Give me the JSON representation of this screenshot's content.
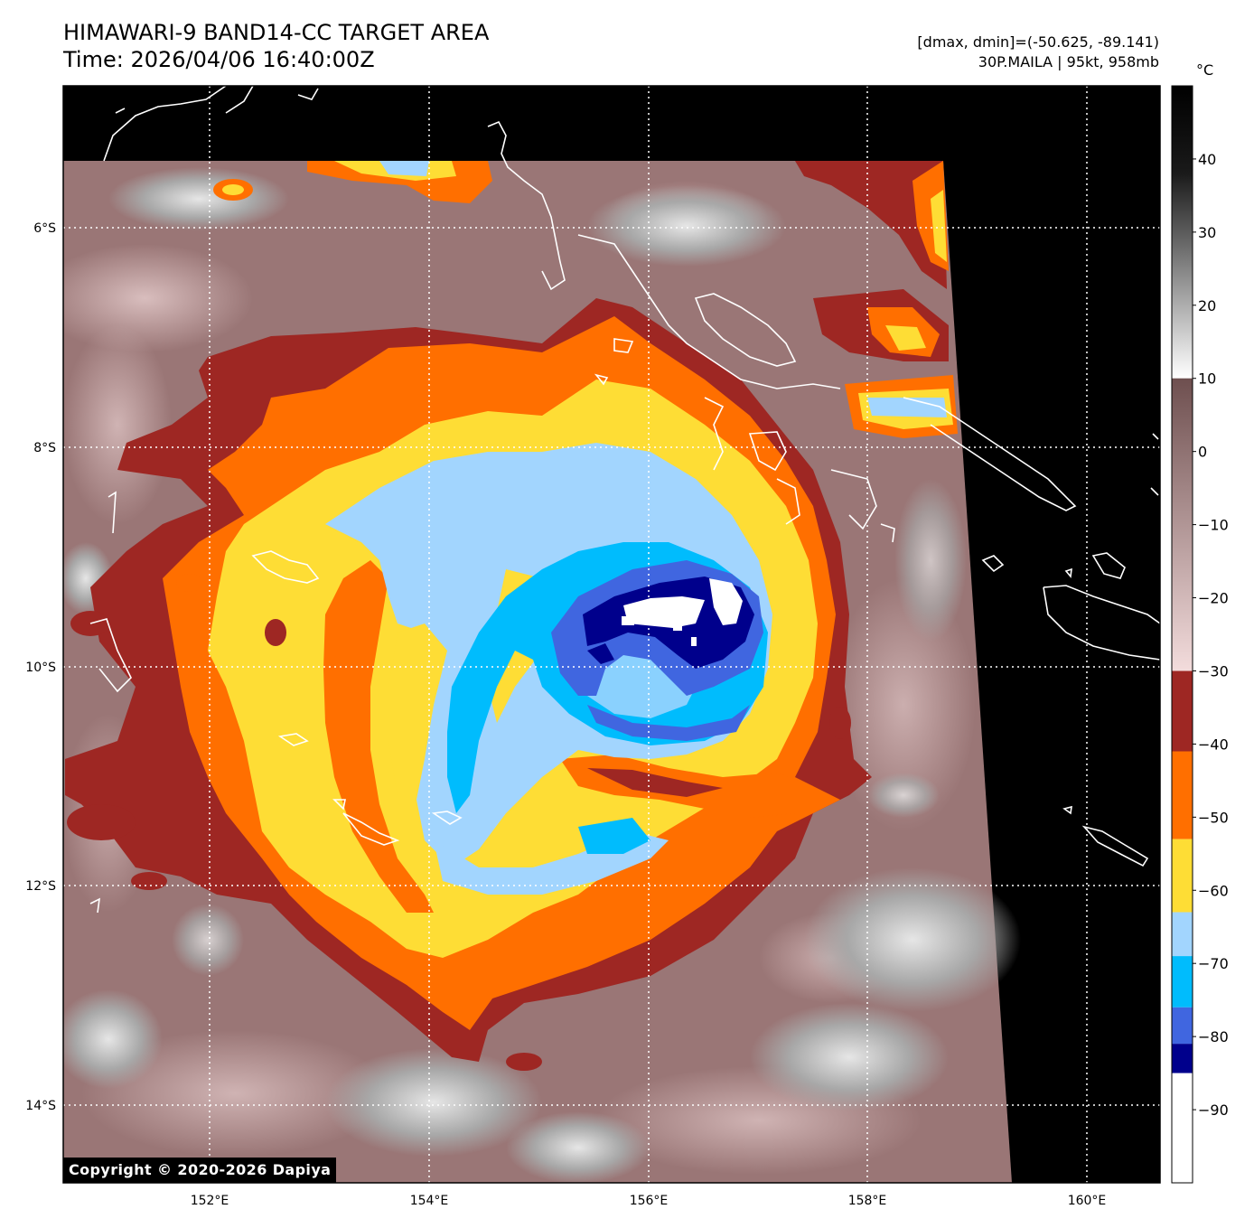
{
  "header": {
    "title_line1": "HIMAWARI-9 BAND14-CC TARGET AREA",
    "title_line2": "Time: 2026/04/06 16:40:00Z",
    "range_text": "[dmax, dmin]=(-50.625, -89.141)",
    "storm_text": "30P.MAILA | 95kt, 958mb"
  },
  "map": {
    "lon_labels": [
      "152°E",
      "154°E",
      "156°E",
      "158°E",
      "160°E"
    ],
    "lat_labels": [
      "6°S",
      "8°S",
      "10°S",
      "12°S",
      "14°S"
    ],
    "copyright": "Copyright © 2020-2026 Dapiya"
  },
  "colorbar": {
    "unit": "°C",
    "ticks": [
      "40",
      "30",
      "20",
      "10",
      "0",
      "−10",
      "−20",
      "−30",
      "−40",
      "−50",
      "−60",
      "−70",
      "−80",
      "−90"
    ],
    "bands": [
      {
        "from": 10,
        "to": 50,
        "kind": "grayscale",
        "top_color": "#000000",
        "bottom_color": "#ffffff"
      },
      {
        "from": -30,
        "to": 10,
        "kind": "gradient",
        "top_color": "#6e4f4f",
        "bottom_color": "#f3dcdc"
      },
      {
        "from": -41,
        "to": -30,
        "color": "#9e2723"
      },
      {
        "from": -53,
        "to": -41,
        "color": "#ff6f00"
      },
      {
        "from": -63,
        "to": -53,
        "color": "#fedd35"
      },
      {
        "from": -69,
        "to": -63,
        "color": "#a2d5fe"
      },
      {
        "from": -76,
        "to": -69,
        "color": "#00bcfd"
      },
      {
        "from": -81,
        "to": -76,
        "color": "#4066e0"
      },
      {
        "from": -85,
        "to": -81,
        "color": "#00008c"
      },
      {
        "from": -100,
        "to": -85,
        "color": "#ffffff"
      }
    ]
  },
  "colors": {
    "warm_cloud_free": "#000000",
    "cloud_gray": "#a8a8a8",
    "low_cloud": "#9a7676",
    "dark_red": "#9e2723",
    "orange": "#ff6f00",
    "yellow": "#fedd35",
    "light_blue": "#a2d5fe",
    "cyan": "#00bcfd",
    "royal_blue": "#4066e0",
    "navy": "#00008c",
    "coldest": "#ffffff"
  }
}
